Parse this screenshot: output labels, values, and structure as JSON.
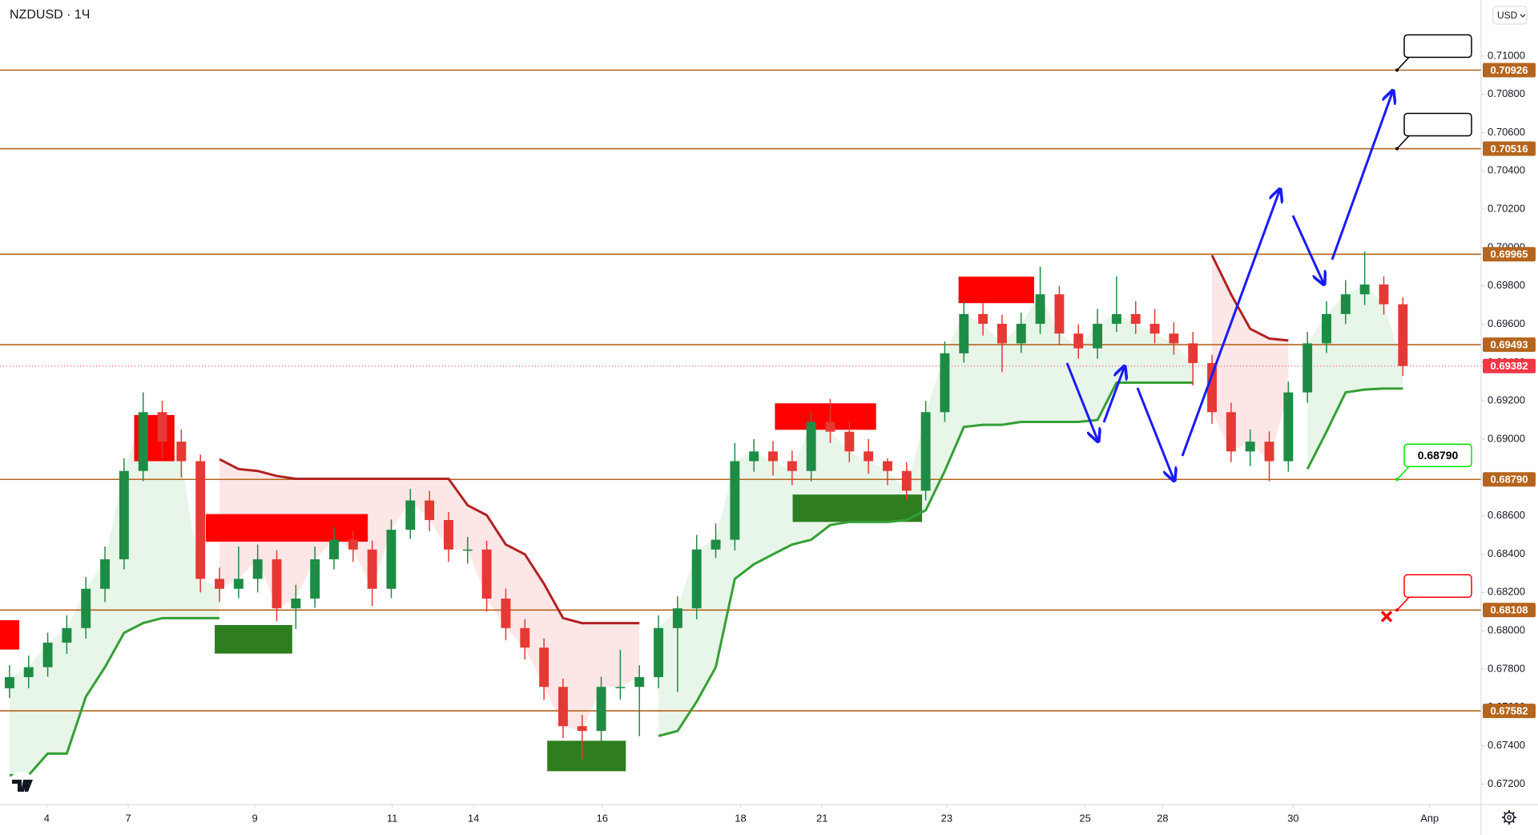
{
  "chart_data": {
    "type": "candlestick",
    "title": "NZDUSD · 1Ч",
    "currency": "USD",
    "xlim": [
      -0.5,
      77.1
    ],
    "ylim": [
      0.67093,
      0.71292
    ],
    "xticks": [
      {
        "value": 1.95,
        "label": "4"
      },
      {
        "value": 6.22,
        "label": "7"
      },
      {
        "value": 12.85,
        "label": "9"
      },
      {
        "value": 20.05,
        "label": "11"
      },
      {
        "value": 24.31,
        "label": "14"
      },
      {
        "value": 31.05,
        "label": "16"
      },
      {
        "value": 38.3,
        "label": "18"
      },
      {
        "value": 42.57,
        "label": "21"
      },
      {
        "value": 49.1,
        "label": "23"
      },
      {
        "value": 56.35,
        "label": "25"
      },
      {
        "value": 60.41,
        "label": "28"
      },
      {
        "value": 67.25,
        "label": "30"
      },
      {
        "value": 74.4,
        "label": "Апр"
      }
    ],
    "yticks": [
      {
        "value": 0.672,
        "label": "0.67200"
      },
      {
        "value": 0.674,
        "label": "0.67400"
      },
      {
        "value": 0.676,
        "label": "0.67600"
      },
      {
        "value": 0.678,
        "label": "0.67800"
      },
      {
        "value": 0.68,
        "label": "0.68000"
      },
      {
        "value": 0.682,
        "label": "0.68200"
      },
      {
        "value": 0.684,
        "label": "0.68400"
      },
      {
        "value": 0.686,
        "label": "0.68600"
      },
      {
        "value": 0.688,
        "label": "0.68800"
      },
      {
        "value": 0.69,
        "label": "0.69000"
      },
      {
        "value": 0.692,
        "label": "0.69200"
      },
      {
        "value": 0.694,
        "label": "0.69400"
      },
      {
        "value": 0.696,
        "label": "0.69600"
      },
      {
        "value": 0.698,
        "label": "0.69800"
      },
      {
        "value": 0.7,
        "label": "0.70000"
      },
      {
        "value": 0.702,
        "label": "0.70200"
      },
      {
        "value": 0.704,
        "label": "0.70400"
      },
      {
        "value": 0.706,
        "label": "0.70600"
      },
      {
        "value": 0.708,
        "label": "0.70800"
      },
      {
        "value": 0.71,
        "label": "0.71000"
      }
    ],
    "up_color": "#1e8c45",
    "down_color": "#e53935",
    "open": [
      0.677,
      0.67758,
      0.6781,
      0.67938,
      0.68014,
      0.68219,
      0.68373,
      0.68834,
      0.69141,
      0.68987,
      0.68885,
      0.68271,
      0.68219,
      0.68271,
      0.68373,
      0.68117,
      0.68168,
      0.68373,
      0.68475,
      0.68424,
      0.68219,
      0.68527,
      0.6868,
      0.68578,
      0.68424,
      0.68424,
      0.68168,
      0.68014,
      0.67912,
      0.67707,
      0.67502,
      0.67477,
      0.67707,
      0.67707,
      0.67758,
      0.68014,
      0.68117,
      0.68424,
      0.68475,
      0.68885,
      0.68936,
      0.68885,
      0.68834,
      0.6909,
      0.69039,
      0.68936,
      0.68885,
      0.68834,
      0.68731,
      0.69141,
      0.69448,
      0.69653,
      0.69602,
      0.695,
      0.69602,
      0.69756,
      0.69551,
      0.69474,
      0.69602,
      0.69653,
      0.69602,
      0.69551,
      0.695,
      0.69397,
      0.69141,
      0.68936,
      0.68987,
      0.68885,
      0.69244,
      0.695,
      0.69653,
      0.69756,
      0.69807,
      0.69704
    ],
    "high": [
      0.6782,
      0.6787,
      0.6799,
      0.6808,
      0.6828,
      0.6844,
      0.689,
      0.69244,
      0.692,
      0.6905,
      0.6892,
      0.6833,
      0.6844,
      0.6845,
      0.6842,
      0.6824,
      0.6844,
      0.6854,
      0.6852,
      0.6847,
      0.6858,
      0.6874,
      0.6873,
      0.6862,
      0.6849,
      0.6847,
      0.6822,
      0.6806,
      0.6796,
      0.6775,
      0.6756,
      0.6776,
      0.679,
      0.6782,
      0.6808,
      0.6818,
      0.685,
      0.6856,
      0.6898,
      0.69,
      0.6899,
      0.6894,
      0.6914,
      0.6921,
      0.6909,
      0.69,
      0.689,
      0.6888,
      0.692,
      0.6951,
      0.6972,
      0.6971,
      0.6965,
      0.6966,
      0.699,
      0.698,
      0.696,
      0.6968,
      0.6985,
      0.6972,
      0.6968,
      0.6961,
      0.6956,
      0.6944,
      0.6919,
      0.6905,
      0.6904,
      0.693,
      0.6956,
      0.6972,
      0.6983,
      0.6998,
      0.6985,
      0.6974
    ],
    "low": [
      0.6765,
      0.677,
      0.6776,
      0.6788,
      0.6796,
      0.6815,
      0.6832,
      0.6878,
      0.689,
      0.688,
      0.682,
      0.6815,
      0.6817,
      0.682,
      0.6805,
      0.6801,
      0.6812,
      0.6832,
      0.6836,
      0.6813,
      0.6817,
      0.6848,
      0.6852,
      0.6836,
      0.6835,
      0.681,
      0.6795,
      0.6785,
      0.6764,
      0.6744,
      0.6733,
      0.6742,
      0.6764,
      0.6745,
      0.677,
      0.6768,
      0.6806,
      0.6838,
      0.6842,
      0.6883,
      0.6881,
      0.6876,
      0.6878,
      0.6898,
      0.6888,
      0.6882,
      0.6876,
      0.6868,
      0.6868,
      0.6909,
      0.694,
      0.6954,
      0.6935,
      0.6945,
      0.6955,
      0.6949,
      0.6942,
      0.6942,
      0.6956,
      0.6955,
      0.695,
      0.6944,
      0.6928,
      0.6908,
      0.6888,
      0.6886,
      0.6878,
      0.6883,
      0.6919,
      0.6945,
      0.696,
      0.697,
      0.6965,
      0.6933
    ],
    "close": [
      0.67758,
      0.6781,
      0.67938,
      0.68014,
      0.68219,
      0.68373,
      0.68834,
      0.69141,
      0.68987,
      0.68885,
      0.68271,
      0.68219,
      0.68271,
      0.68373,
      0.68117,
      0.68168,
      0.68373,
      0.68475,
      0.68424,
      0.68219,
      0.68527,
      0.6868,
      0.68578,
      0.68424,
      0.68424,
      0.68168,
      0.68014,
      0.67912,
      0.67707,
      0.67502,
      0.67477,
      0.67707,
      0.67707,
      0.67758,
      0.68014,
      0.68117,
      0.68424,
      0.68475,
      0.68885,
      0.68936,
      0.68885,
      0.68834,
      0.6909,
      0.69039,
      0.68936,
      0.68885,
      0.68834,
      0.68731,
      0.69141,
      0.69448,
      0.69653,
      0.69602,
      0.695,
      0.69602,
      0.69756,
      0.69551,
      0.69474,
      0.69602,
      0.69653,
      0.69602,
      0.69551,
      0.695,
      0.69397,
      0.69141,
      0.68936,
      0.68987,
      0.68885,
      0.69244,
      0.695,
      0.69653,
      0.69756,
      0.69807,
      0.69704,
      0.69382
    ],
    "trend_up": {
      "color": "#35a035",
      "fill": "#e8f5e9",
      "values": [
        0.67246,
        0.67246,
        0.67359,
        0.67359,
        0.67656,
        0.6781,
        0.67989,
        0.6804,
        0.68066,
        0.68066,
        0.68066,
        0.68066,
        null,
        null,
        null,
        null,
        null,
        null,
        null,
        null,
        null,
        null,
        null,
        null,
        null,
        null,
        null,
        null,
        null,
        null,
        null,
        null,
        null,
        null,
        0.67451,
        0.67477,
        0.6763,
        0.6781,
        0.68271,
        0.68347,
        0.68399,
        0.6845,
        0.68475,
        0.68552,
        0.68568,
        0.68568,
        0.68568,
        0.68578,
        0.68629,
        0.68834,
        0.69064,
        0.69075,
        0.69075,
        0.6909,
        0.6909,
        0.6909,
        0.6909,
        0.691,
        0.69295,
        0.69295,
        0.69295,
        0.69295,
        0.69295,
        null,
        null,
        null,
        null,
        null,
        0.68844,
        0.69039,
        0.69244,
        0.69259,
        0.69264,
        0.69264
      ]
    },
    "trend_down": {
      "color": "#b22222",
      "fill": "#fde6e6",
      "values": [
        null,
        null,
        null,
        null,
        null,
        null,
        null,
        null,
        null,
        null,
        null,
        0.68895,
        0.68844,
        0.68834,
        0.68808,
        0.68793,
        0.68793,
        0.68793,
        0.68793,
        0.68793,
        0.68793,
        0.68793,
        0.68793,
        0.68793,
        0.68655,
        0.68603,
        0.6845,
        0.68399,
        0.68245,
        0.68066,
        0.6804,
        0.6804,
        0.6804,
        0.6804,
        null,
        null,
        null,
        null,
        null,
        null,
        null,
        null,
        null,
        null,
        null,
        null,
        null,
        null,
        null,
        null,
        null,
        null,
        null,
        null,
        null,
        null,
        null,
        null,
        null,
        null,
        null,
        null,
        null,
        0.6996,
        0.69756,
        0.69576,
        0.69525,
        0.69515,
        null,
        null,
        null,
        null,
        null,
        null
      ]
    },
    "zones": [
      {
        "x": [
          -0.77,
          0.51
        ],
        "y": [
          0.67902,
          0.68055
        ],
        "color": "#ff0000"
      },
      {
        "x": [
          6.53,
          8.64
        ],
        "y": [
          0.68885,
          0.69126
        ],
        "color": "#ff0000"
      },
      {
        "x": [
          10.28,
          18.77
        ],
        "y": [
          0.68465,
          0.68609
        ],
        "color": "#ff0000"
      },
      {
        "x": [
          10.75,
          14.81
        ],
        "y": [
          0.67881,
          0.6803
        ],
        "color": "#2e7d1f"
      },
      {
        "x": [
          28.17,
          32.29
        ],
        "y": [
          0.67267,
          0.67426
        ],
        "color": "#2e7d1f"
      },
      {
        "x": [
          40.1,
          45.4
        ],
        "y": [
          0.69049,
          0.69187
        ],
        "color": "#ff0000"
      },
      {
        "x": [
          41.03,
          47.81
        ],
        "y": [
          0.68568,
          0.68711
        ],
        "color": "#2e7d1f"
      },
      {
        "x": [
          49.72,
          53.68
        ],
        "y": [
          0.6971,
          0.69848
        ],
        "color": "#ff0000"
      }
    ],
    "level_color": "#b5651d",
    "levels": [
      0.70926,
      0.70516,
      0.69965,
      0.69493,
      {
        "value": 0.6879,
        "label": "0.68790"
      },
      0.68108,
      0.67582
    ],
    "last": 0.69382,
    "last_color": "#f23645",
    "targets": [
      {
        "value": 0.70926,
        "color": "#000000"
      },
      {
        "value": 0.70516,
        "color": "#000000"
      },
      {
        "value": 0.6879,
        "label": "0.68790",
        "color": "#00e600"
      },
      {
        "value": 0.68108,
        "color": "#ff0000",
        "cross": true
      }
    ]
  }
}
